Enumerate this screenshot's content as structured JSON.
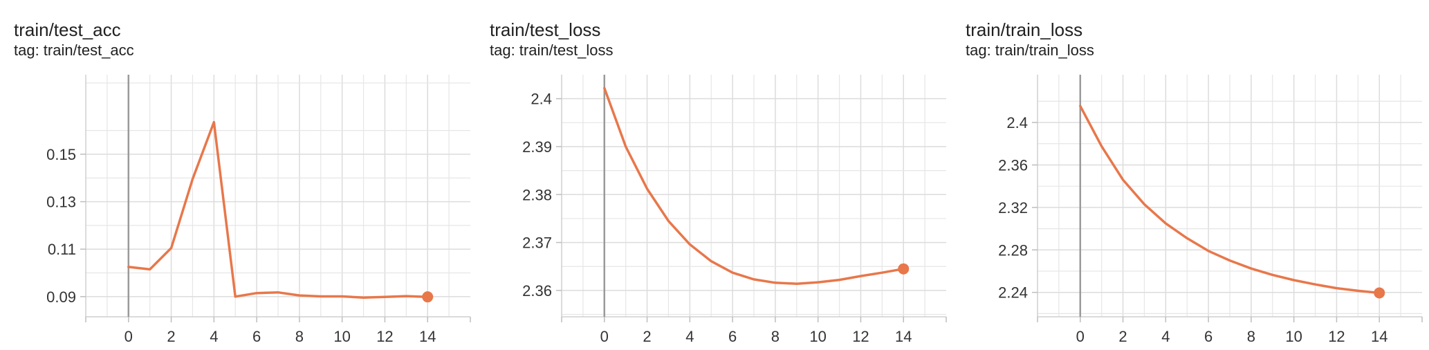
{
  "charts": [
    {
      "title": "train/test_acc",
      "tag": "tag: train/test_acc",
      "color": "#e8774a",
      "chart_data": {
        "type": "line",
        "x": [
          0,
          1,
          2,
          3,
          4,
          5,
          6,
          7,
          8,
          9,
          10,
          11,
          12,
          13,
          14
        ],
        "series": [
          {
            "values": [
              0.1025,
              0.1015,
              0.1105,
              0.1395,
              0.1635,
              0.09,
              0.0915,
              0.0918,
              0.0905,
              0.0901,
              0.0901,
              0.0896,
              0.0899,
              0.0902,
              0.0899
            ]
          }
        ],
        "xlim": [
          -2,
          16
        ],
        "ylim": [
          0.0815,
          0.1835
        ],
        "xticks": [
          0,
          2,
          4,
          6,
          8,
          10,
          12,
          14
        ],
        "yticks": [
          0.09,
          0.11,
          0.13,
          0.15
        ],
        "ytick_labels": [
          "0.09",
          "0.11",
          "0.13",
          "0.15"
        ],
        "grid": true,
        "marker_last": true
      }
    },
    {
      "title": "train/test_loss",
      "tag": "tag: train/test_loss",
      "color": "#e8774a",
      "chart_data": {
        "type": "line",
        "x": [
          0,
          1,
          2,
          3,
          4,
          5,
          6,
          7,
          8,
          9,
          10,
          11,
          12,
          13,
          14
        ],
        "series": [
          {
            "values": [
              2.4022,
              2.39,
              2.3812,
              2.3745,
              2.3696,
              2.3661,
              2.3637,
              2.3623,
              2.3616,
              2.3614,
              2.3617,
              2.3622,
              2.363,
              2.3637,
              2.3645
            ]
          }
        ],
        "xlim": [
          -2,
          16
        ],
        "ylim": [
          2.3545,
          2.405
        ],
        "xticks": [
          0,
          2,
          4,
          6,
          8,
          10,
          12,
          14
        ],
        "yticks": [
          2.36,
          2.37,
          2.38,
          2.39,
          2.4
        ],
        "ytick_labels": [
          "2.36",
          "2.37",
          "2.38",
          "2.39",
          "2.4"
        ],
        "grid": true,
        "marker_last": true
      }
    },
    {
      "title": "train/train_loss",
      "tag": "tag: train/train_loss",
      "color": "#e8774a",
      "chart_data": {
        "type": "line",
        "x": [
          0,
          1,
          2,
          3,
          4,
          5,
          6,
          7,
          8,
          9,
          10,
          11,
          12,
          13,
          14
        ],
        "series": [
          {
            "values": [
              2.4155,
              2.3775,
              2.346,
              2.323,
              2.305,
              2.291,
              2.279,
              2.27,
              2.2625,
              2.2565,
              2.2515,
              2.2475,
              2.244,
              2.2415,
              2.2395
            ]
          }
        ],
        "xlim": [
          -2,
          16
        ],
        "ylim": [
          2.217,
          2.445
        ],
        "xticks": [
          0,
          2,
          4,
          6,
          8,
          10,
          12,
          14
        ],
        "yticks": [
          2.24,
          2.28,
          2.32,
          2.36,
          2.4
        ],
        "ytick_labels": [
          "2.24",
          "2.28",
          "2.32",
          "2.36",
          "2.4"
        ],
        "grid": true,
        "marker_last": true
      }
    }
  ]
}
